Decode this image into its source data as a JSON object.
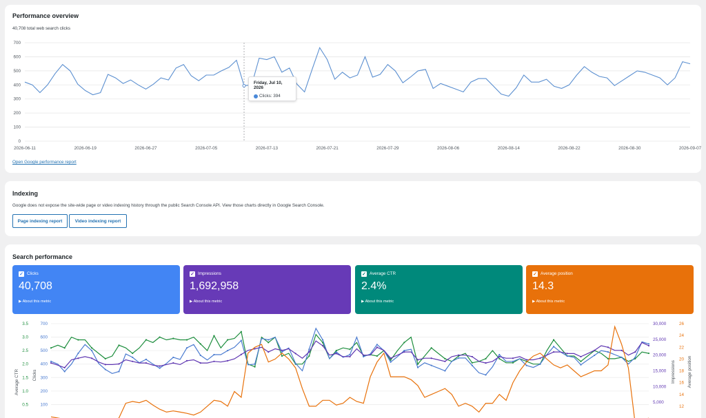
{
  "performance": {
    "title": "Performance overview",
    "subtitle": "40,708 total web search clicks",
    "link": "Open Google performance report",
    "tooltip": {
      "date": "Friday, Jul 10, 2026",
      "label": "Clicks: 394",
      "color": "#4a89d9"
    }
  },
  "indexing": {
    "title": "Indexing",
    "description": "Google does not expose the site-wide page or video indexing history through the public Search Console API. View those charts directly in Google Search Console.",
    "buttons": [
      "Page indexing report",
      "Video indexing report"
    ]
  },
  "search": {
    "title": "Search performance",
    "metrics": [
      {
        "label": "Clicks",
        "value": "40,708",
        "about": "About this metric",
        "color": "#4285f4",
        "check": "#4285f4"
      },
      {
        "label": "Impressions",
        "value": "1,692,958",
        "about": "About this metric",
        "color": "#673ab7",
        "check": "#673ab7"
      },
      {
        "label": "Average CTR",
        "value": "2.4%",
        "about": "About this metric",
        "color": "#00897b",
        "check": "#00897b"
      },
      {
        "label": "Average position",
        "value": "14.3",
        "about": "About this metric",
        "color": "#e8710a",
        "check": "#e8710a"
      }
    ]
  },
  "chart_data": [
    {
      "type": "line",
      "title": "",
      "ylim": [
        0,
        700
      ],
      "yticks": [
        0,
        100,
        200,
        300,
        400,
        500,
        600,
        700
      ],
      "xtick_labels": [
        "2026-06-11",
        "2026-06-19",
        "2026-06-27",
        "2026-07-05",
        "2026-07-13",
        "2026-07-21",
        "2026-07-29",
        "2026-08-06",
        "2026-08-14",
        "2026-08-22",
        "2026-08-30",
        "2026-09-07"
      ],
      "grid": true,
      "series": [
        {
          "color": "#5b8fd0",
          "values": [
            420,
            400,
            345,
            400,
            480,
            545,
            500,
            405,
            360,
            330,
            345,
            475,
            450,
            410,
            435,
            400,
            370,
            405,
            450,
            435,
            520,
            545,
            465,
            430,
            470,
            470,
            500,
            525,
            575,
            394,
            400,
            590,
            580,
            600,
            490,
            520,
            405,
            350,
            510,
            665,
            580,
            440,
            490,
            450,
            470,
            600,
            455,
            475,
            545,
            500,
            415,
            455,
            500,
            510,
            375,
            410,
            390,
            370,
            350,
            420,
            445,
            445,
            390,
            335,
            320,
            380,
            470,
            420,
            420,
            440,
            390,
            375,
            400,
            470,
            530,
            490,
            460,
            450,
            395,
            430,
            465,
            500,
            490,
            470,
            450,
            400,
            450,
            565,
            550
          ]
        }
      ]
    },
    {
      "type": "line",
      "title": "",
      "axes": {
        "ctr": {
          "label": "Average CTR",
          "ticks": [
            "0.5",
            "1.0",
            "1.5",
            "2.0",
            "2.5",
            "3.0",
            "3.5"
          ],
          "ylim": [
            0,
            3.5
          ]
        },
        "clicks": {
          "label": "Clicks",
          "ticks": [
            "100",
            "200",
            "300",
            "400",
            "500",
            "600",
            "700"
          ],
          "ylim": [
            0,
            700
          ]
        },
        "impressions": {
          "label": "Impressions",
          "ticks": [
            "5,000",
            "10,000",
            "15,000",
            "20,000",
            "25,000",
            "30,000"
          ],
          "ylim": [
            0,
            30000
          ]
        },
        "position": {
          "label": "Average position",
          "ticks": [
            "12",
            "14",
            "16",
            "18",
            "20",
            "22",
            "24",
            "26"
          ],
          "ylim": [
            10,
            26
          ]
        }
      },
      "series": [
        {
          "axis": "ctr",
          "color": "#1e8e3e",
          "values": [
            2.6,
            2.7,
            2.6,
            3.0,
            2.9,
            2.9,
            2.6,
            2.4,
            2.2,
            2.3,
            2.7,
            2.6,
            2.4,
            2.6,
            2.9,
            2.8,
            3.0,
            2.9,
            2.95,
            2.9,
            2.9,
            3.0,
            2.75,
            2.5,
            3.05,
            2.6,
            2.9,
            2.95,
            3.2,
            2.0,
            1.9,
            3.0,
            2.8,
            3.0,
            2.3,
            2.4,
            2.0,
            2.0,
            2.3,
            3.1,
            2.8,
            2.2,
            2.5,
            2.6,
            2.55,
            2.8,
            2.3,
            2.35,
            2.3,
            2.5,
            2.15,
            2.5,
            2.8,
            3.0,
            2.0,
            2.3,
            2.6,
            2.4,
            2.2,
            2.1,
            2.3,
            2.4,
            2.05,
            2.1,
            2.2,
            2.5,
            2.2,
            2.05,
            2.05,
            2.2,
            2.1,
            2.0,
            2.0,
            2.5,
            2.9,
            2.6,
            2.3,
            2.3,
            2.1,
            2.3,
            2.5,
            2.4,
            2.2,
            2.2,
            2.25,
            2.1,
            2.2,
            2.45,
            2.4
          ]
        },
        {
          "axis": "clicks",
          "color": "#4a7bd0",
          "values": [
            420,
            400,
            345,
            400,
            480,
            545,
            500,
            405,
            360,
            330,
            345,
            475,
            450,
            410,
            435,
            400,
            370,
            405,
            450,
            435,
            520,
            545,
            465,
            430,
            470,
            470,
            500,
            525,
            575,
            394,
            400,
            590,
            580,
            600,
            490,
            520,
            405,
            350,
            510,
            665,
            580,
            440,
            490,
            450,
            470,
            600,
            455,
            475,
            545,
            500,
            415,
            455,
            500,
            510,
            375,
            410,
            390,
            370,
            350,
            420,
            445,
            445,
            390,
            335,
            320,
            380,
            470,
            420,
            420,
            440,
            390,
            375,
            400,
            470,
            530,
            490,
            460,
            450,
            395,
            430,
            465,
            500,
            490,
            470,
            450,
            400,
            450,
            565,
            550
          ]
        },
        {
          "axis": "impressions",
          "color": "#5e35b1",
          "values": [
            17500,
            16800,
            16000,
            18500,
            19000,
            19500,
            19000,
            17800,
            17000,
            17000,
            17200,
            18500,
            18000,
            17500,
            17500,
            16800,
            16500,
            17000,
            17500,
            17000,
            18200,
            18500,
            17500,
            17500,
            18000,
            17800,
            18200,
            18800,
            20200,
            21500,
            22000,
            22500,
            21000,
            22000,
            21500,
            22000,
            20500,
            19000,
            21000,
            24500,
            23000,
            20000,
            20500,
            19500,
            19500,
            22000,
            20000,
            20000,
            22500,
            21500,
            19000,
            20000,
            21000,
            21000,
            18500,
            19000,
            19000,
            18500,
            18000,
            19500,
            20000,
            20000,
            19500,
            18000,
            17500,
            18000,
            19500,
            19000,
            19000,
            19500,
            18500,
            18500,
            19000,
            20000,
            21000,
            21000,
            20500,
            20500,
            19500,
            20500,
            21500,
            23000,
            22500,
            21500,
            21500,
            20000,
            21000,
            24000,
            23000
          ]
        },
        {
          "axis": "position",
          "color": "#e8710a",
          "values": [
            10.2,
            10.0,
            9.8,
            9.5,
            9.3,
            9.5,
            9.2,
            9.0,
            9.2,
            9.5,
            10.0,
            12.5,
            12.8,
            12.6,
            13.0,
            12.2,
            11.5,
            11.0,
            11.2,
            11.0,
            10.8,
            10.5,
            11.0,
            12.0,
            13.0,
            12.8,
            12.0,
            14.5,
            13.5,
            21.0,
            22.0,
            22.5,
            19.5,
            20.0,
            21.0,
            20.0,
            18.5,
            15.0,
            12.0,
            12.0,
            13.0,
            13.0,
            12.2,
            12.5,
            13.5,
            12.8,
            12.5,
            17.0,
            19.5,
            21.0,
            17.0,
            17.0,
            17.0,
            16.5,
            15.5,
            13.5,
            14.0,
            14.5,
            15.0,
            14.0,
            12.0,
            12.5,
            12.0,
            11.0,
            12.5,
            12.5,
            14.0,
            13.0,
            16.0,
            18.0,
            19.5,
            20.5,
            21.0,
            20.0,
            19.0,
            18.5,
            19.0,
            18.0,
            17.0,
            17.5,
            18.0,
            18.0,
            19.0,
            25.5,
            22.5,
            18.5,
            9.0,
            9.5,
            10.0
          ]
        }
      ]
    }
  ]
}
